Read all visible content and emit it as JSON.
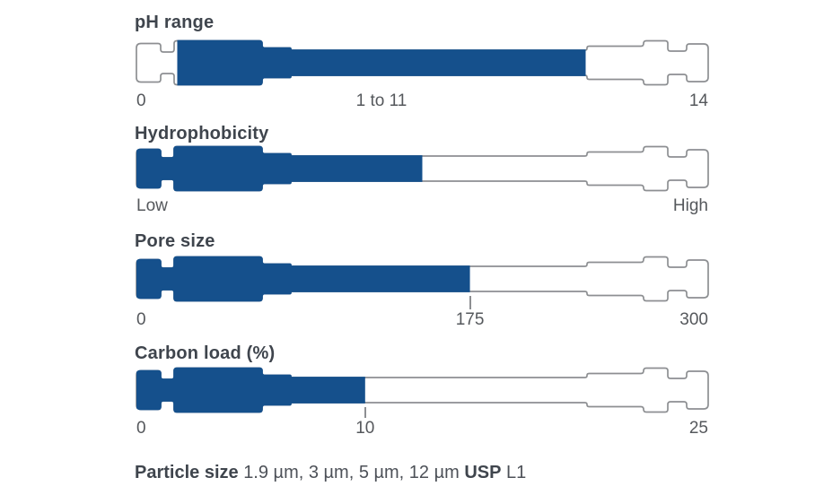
{
  "colors": {
    "fill_blue": "#15508c",
    "outline_gray": "#8d8f92",
    "heading_text": "#3f454d",
    "scale_text": "#55585c",
    "background": "#ffffff"
  },
  "chart_data": {
    "type": "bar",
    "description": "Four column-silhouette gauges showing chromatography column specifications",
    "gauges": [
      {
        "title": "pH range",
        "axis_min": 0,
        "axis_max": 14,
        "filled_range": [
          1,
          11
        ],
        "fill_start_frac": 0.0714,
        "fill_end_frac": 0.7857,
        "labels": [
          {
            "text": "0",
            "frac": 0,
            "align": "left"
          },
          {
            "text": "1 to 11",
            "frac": 0.4286,
            "align": "center"
          },
          {
            "text": "14",
            "frac": 1,
            "align": "right"
          }
        ],
        "tick_frac": null
      },
      {
        "title": "Hydrophobicity",
        "axis_min": "Low",
        "axis_max": "High",
        "fill_start_frac": 0,
        "fill_end_frac": 0.5,
        "labels": [
          {
            "text": "Low",
            "frac": 0,
            "align": "left"
          },
          {
            "text": "High",
            "frac": 1,
            "align": "right"
          }
        ],
        "tick_frac": null
      },
      {
        "title": "Pore size",
        "axis_min": 0,
        "axis_max": 300,
        "filled_range": [
          0,
          175
        ],
        "fill_start_frac": 0,
        "fill_end_frac": 0.5833,
        "labels": [
          {
            "text": "0",
            "frac": 0,
            "align": "left"
          },
          {
            "text": "175",
            "frac": 0.5833,
            "align": "center"
          },
          {
            "text": "300",
            "frac": 1,
            "align": "right"
          }
        ],
        "tick_frac": 0.5833
      },
      {
        "title": "Carbon load (%)",
        "axis_min": 0,
        "axis_max": 25,
        "filled_range": [
          0,
          10
        ],
        "fill_start_frac": 0,
        "fill_end_frac": 0.4,
        "labels": [
          {
            "text": "0",
            "frac": 0,
            "align": "left"
          },
          {
            "text": "10",
            "frac": 0.4,
            "align": "center"
          },
          {
            "text": "25",
            "frac": 1,
            "align": "right"
          }
        ],
        "tick_frac": 0.4
      }
    ]
  },
  "footer": {
    "particle_size_label": "Particle size",
    "particle_size_values": "1.9 µm, 3 µm, 5 µm, 12 µm",
    "usp_label": "USP",
    "usp_value": "L1"
  }
}
